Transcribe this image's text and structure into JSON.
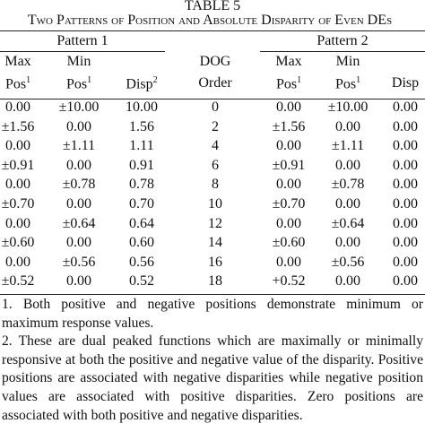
{
  "header": {
    "title": "TABLE 5",
    "subtitle": "Two Patterns of Position and Absolute Disparity of Even DEs"
  },
  "table": {
    "groups": [
      "Pattern 1",
      "Pattern 2"
    ],
    "columns": [
      {
        "lines": [
          "Max",
          "Pos"
        ],
        "sup": "1"
      },
      {
        "lines": [
          "Min",
          "Pos"
        ],
        "sup": "1"
      },
      {
        "lines": [
          "Disp"
        ],
        "sup": "2"
      },
      {
        "lines": [
          "DOG",
          "Order"
        ]
      },
      {
        "lines": [
          "Max",
          "Pos"
        ],
        "sup": "1"
      },
      {
        "lines": [
          "Min",
          "Pos"
        ],
        "sup": "1"
      },
      {
        "lines": [
          "Disp"
        ]
      }
    ],
    "rows": [
      [
        "0.00",
        "±10.00",
        "10.00",
        "0",
        "0.00",
        "±10.00",
        "0.00"
      ],
      [
        "±1.56",
        "0.00",
        "1.56",
        "2",
        "±1.56",
        "0.00",
        "0.00"
      ],
      [
        "0.00",
        "±1.11",
        "1.11",
        "4",
        "0.00",
        "±1.11",
        "0.00"
      ],
      [
        "±0.91",
        "0.00",
        "0.91",
        "6",
        "±0.91",
        "0.00",
        "0.00"
      ],
      [
        "0.00",
        "±0.78",
        "0.78",
        "8",
        "0.00",
        "±0.78",
        "0.00"
      ],
      [
        "±0.70",
        "0.00",
        "0.70",
        "10",
        "±0.70",
        "0.00",
        "0.00"
      ],
      [
        "0.00",
        "±0.64",
        "0.64",
        "12",
        "0.00",
        "±0.64",
        "0.00"
      ],
      [
        "±0.60",
        "0.00",
        "0.60",
        "14",
        "±0.60",
        "0.00",
        "0.00"
      ],
      [
        "0.00",
        "±0.56",
        "0.56",
        "16",
        "0.00",
        "±0.56",
        "0.00"
      ],
      [
        "±0.52",
        "0.00",
        "0.52",
        "18",
        "+0.52",
        "0.00",
        "0.00"
      ]
    ]
  },
  "notes": [
    "1. Both positive and negative positions demonstrate minimum or maximum response values.",
    "2. These are dual peaked functions which are maximally or minimally responsive at both the positive and negative value of the disparity. Positive positions are associated with negative disparities while negative position values are associated with positive disparities. Zero positions are associated with both positive and negative disparities."
  ]
}
